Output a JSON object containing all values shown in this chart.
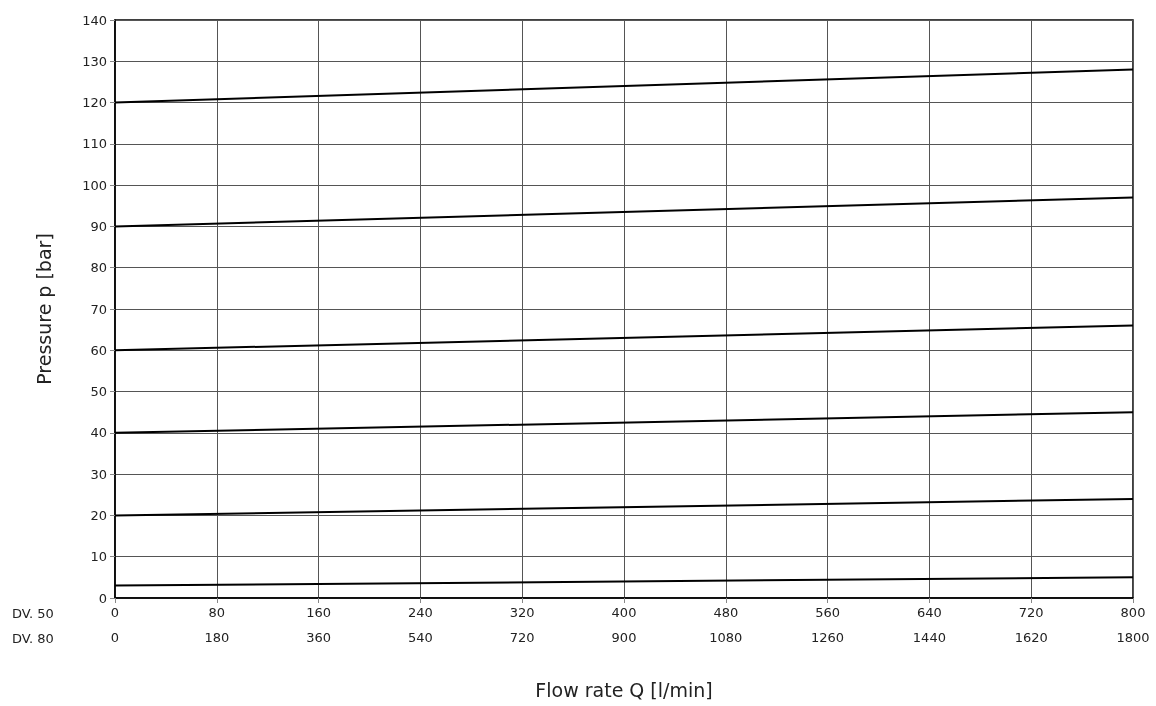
{
  "chart_data": {
    "type": "line",
    "xlabel": "Flow rate Q [l/min]",
    "ylabel": "Pressure p [bar]",
    "annotations": [
      "DV. 50",
      "DV. 80"
    ],
    "x": [
      0,
      800
    ],
    "xlim": [
      0,
      800
    ],
    "xticks": [
      0,
      80,
      160,
      240,
      320,
      400,
      480,
      560,
      640,
      720,
      800
    ],
    "x2lim": [
      0,
      1800
    ],
    "x2ticks": [
      0,
      180,
      360,
      540,
      720,
      900,
      1080,
      1260,
      1440,
      1620,
      1800
    ],
    "ylim": [
      0,
      140
    ],
    "yticks": [
      0,
      10,
      20,
      30,
      40,
      50,
      60,
      70,
      80,
      90,
      100,
      110,
      120,
      130,
      140
    ],
    "grid": true,
    "marker": "none",
    "line_style": "solid",
    "series": [
      {
        "color": "#000000",
        "values": [
          120,
          128
        ]
      },
      {
        "color": "#000000",
        "values": [
          90,
          97
        ]
      },
      {
        "color": "#000000",
        "values": [
          60,
          66
        ]
      },
      {
        "color": "#000000",
        "values": [
          40,
          45
        ]
      },
      {
        "color": "#000000",
        "values": [
          20,
          24
        ]
      },
      {
        "color": "#000000",
        "values": [
          3,
          5
        ]
      }
    ]
  }
}
